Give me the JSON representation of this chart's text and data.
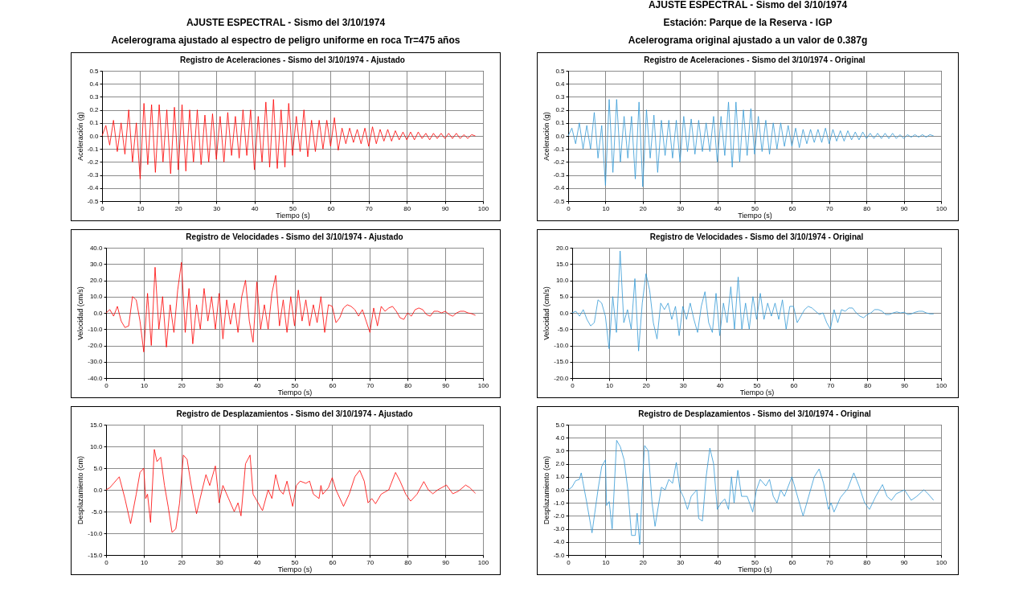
{
  "chart_data": [
    {
      "type": "line",
      "title": "Registro de Aceleraciones - Sismo del 3/10/1974 - Ajustado",
      "xlabel": "Tiempo (s)",
      "ylabel": "Aceleración (g)",
      "annotations": [
        "AJUSTE ESPECTRAL - Sismo del 3/10/1974",
        "Acelerograma ajustado al espectro de peligro uniforme en roca Tr=475 años"
      ],
      "xlim": [
        0,
        100
      ],
      "ylim": [
        -0.5,
        0.5
      ],
      "xticks": [
        0,
        10,
        20,
        30,
        40,
        50,
        60,
        70,
        80,
        90,
        100
      ],
      "yticks": [
        -0.5,
        -0.4,
        -0.3,
        -0.2,
        -0.1,
        {
          "value": 0,
          "label": "0.0"
        },
        0.1,
        0.2,
        0.3,
        0.4,
        0.5
      ],
      "grid": true,
      "series": [
        {
          "color": "#ff0000",
          "x": [
            0,
            1,
            2,
            3,
            4,
            5,
            6,
            7,
            8,
            9,
            10,
            11,
            12,
            13,
            14,
            15,
            16,
            17,
            18,
            19,
            20,
            21,
            22,
            23,
            24,
            25,
            26,
            27,
            28,
            29,
            30,
            31,
            32,
            33,
            34,
            35,
            36,
            37,
            38,
            39,
            40,
            41,
            42,
            43,
            44,
            45,
            46,
            47,
            48,
            49,
            50,
            51,
            52,
            53,
            54,
            55,
            56,
            57,
            58,
            59,
            60,
            61,
            62,
            63,
            64,
            65,
            66,
            67,
            68,
            69,
            70,
            71,
            72,
            73,
            74,
            75,
            76,
            77,
            78,
            79,
            80,
            81,
            82,
            83,
            84,
            85,
            86,
            87,
            88,
            89,
            90,
            91,
            92,
            93,
            94,
            95,
            96,
            97,
            98
          ],
          "values": [
            0.0,
            0.08,
            -0.07,
            0.12,
            -0.12,
            0.1,
            -0.14,
            0.2,
            -0.2,
            0.1,
            -0.33,
            0.25,
            -0.22,
            0.24,
            -0.28,
            0.24,
            -0.2,
            0.2,
            -0.29,
            0.22,
            -0.26,
            0.24,
            -0.27,
            0.2,
            -0.2,
            0.2,
            -0.22,
            0.16,
            -0.2,
            0.17,
            -0.18,
            0.15,
            -0.2,
            0.18,
            -0.15,
            0.15,
            -0.17,
            0.2,
            -0.15,
            0.2,
            -0.26,
            0.15,
            -0.2,
            0.26,
            -0.24,
            0.28,
            -0.25,
            0.2,
            -0.24,
            0.25,
            -0.15,
            0.15,
            -0.12,
            0.2,
            -0.16,
            0.12,
            -0.12,
            0.12,
            -0.1,
            0.12,
            -0.08,
            0.14,
            -0.11,
            0.06,
            -0.06,
            0.06,
            -0.05,
            0.05,
            -0.06,
            0.06,
            -0.08,
            0.07,
            -0.06,
            0.05,
            -0.04,
            0.05,
            -0.04,
            0.04,
            -0.03,
            0.03,
            -0.03,
            0.03,
            -0.03,
            0.03,
            -0.02,
            0.02,
            -0.03,
            0.02,
            -0.02,
            0.02,
            -0.02,
            0.02,
            -0.02,
            0.02,
            -0.02,
            0.01,
            -0.02,
            0.01,
            0.0
          ]
        }
      ]
    },
    {
      "type": "line",
      "title": "Registro de Aceleraciones - Sismo del 3/10/1974 - Original",
      "xlabel": "Tiempo (s)",
      "ylabel": "Aceleración (g)",
      "annotations": [
        "AJUSTE ESPECTRAL - Sismo del 3/10/1974",
        "Estación: Parque de la Reserva - IGP",
        "Acelerograma original ajustado a un valor de 0.387g"
      ],
      "xlim": [
        0,
        100
      ],
      "ylim": [
        -0.5,
        0.5
      ],
      "xticks": [
        0,
        10,
        20,
        30,
        40,
        50,
        60,
        70,
        80,
        90,
        100
      ],
      "yticks": [
        -0.5,
        -0.4,
        -0.3,
        -0.2,
        -0.1,
        {
          "value": 0,
          "label": "0.0"
        },
        0.1,
        0.2,
        0.3,
        0.4,
        0.5
      ],
      "grid": true,
      "series": [
        {
          "color": "#3399d6",
          "x": [
            0,
            1,
            2,
            3,
            4,
            5,
            6,
            7,
            8,
            9,
            10,
            11,
            12,
            13,
            14,
            15,
            16,
            17,
            18,
            19,
            20,
            21,
            22,
            23,
            24,
            25,
            26,
            27,
            28,
            29,
            30,
            31,
            32,
            33,
            34,
            35,
            36,
            37,
            38,
            39,
            40,
            41,
            42,
            43,
            44,
            45,
            46,
            47,
            48,
            49,
            50,
            51,
            52,
            53,
            54,
            55,
            56,
            57,
            58,
            59,
            60,
            61,
            62,
            63,
            64,
            65,
            66,
            67,
            68,
            69,
            70,
            71,
            72,
            73,
            74,
            75,
            76,
            77,
            78,
            79,
            80,
            81,
            82,
            83,
            84,
            85,
            86,
            87,
            88,
            89,
            90,
            91,
            92,
            93,
            94,
            95,
            96,
            97,
            98
          ],
          "values": [
            0.0,
            0.06,
            -0.06,
            0.1,
            -0.1,
            0.08,
            -0.1,
            0.18,
            -0.17,
            0.08,
            -0.38,
            0.28,
            -0.28,
            0.28,
            -0.2,
            0.15,
            -0.17,
            0.15,
            -0.33,
            0.26,
            -0.39,
            0.2,
            -0.17,
            0.16,
            -0.28,
            0.12,
            -0.15,
            0.12,
            -0.17,
            0.12,
            -0.2,
            0.15,
            -0.12,
            0.13,
            -0.14,
            0.12,
            -0.12,
            0.1,
            -0.12,
            0.15,
            -0.2,
            0.15,
            -0.15,
            0.26,
            -0.24,
            0.26,
            -0.2,
            0.2,
            -0.15,
            0.21,
            -0.14,
            0.15,
            -0.12,
            0.12,
            -0.14,
            0.1,
            -0.1,
            0.1,
            -0.08,
            0.08,
            -0.08,
            0.06,
            -0.09,
            0.05,
            -0.06,
            0.05,
            -0.05,
            0.05,
            -0.05,
            0.06,
            -0.06,
            0.05,
            -0.04,
            0.04,
            -0.04,
            0.04,
            -0.03,
            0.03,
            -0.03,
            0.03,
            -0.02,
            0.02,
            -0.02,
            0.02,
            -0.02,
            0.02,
            -0.02,
            0.02,
            -0.02,
            0.01,
            -0.02,
            0.01,
            -0.01,
            0.01,
            -0.01,
            0.01,
            -0.01,
            0.01,
            0.0
          ]
        }
      ]
    },
    {
      "type": "line",
      "title": "Registro de Velocidades - Sismo del 3/10/1974 - Ajustado",
      "xlabel": "Tiempo (s)",
      "ylabel": "Velocidad (cm/s)",
      "xlim": [
        0,
        100
      ],
      "ylim": [
        -40,
        40
      ],
      "xticks": [
        0,
        10,
        20,
        30,
        40,
        50,
        60,
        70,
        80,
        90,
        100
      ],
      "yticks": [
        {
          "value": -40,
          "label": "-40.0"
        },
        {
          "value": -30,
          "label": "-30.0"
        },
        {
          "value": -20,
          "label": "-20.0"
        },
        {
          "value": -10,
          "label": "-10.0"
        },
        {
          "value": 0,
          "label": "0.0"
        },
        {
          "value": 10,
          "label": "10.0"
        },
        {
          "value": 20,
          "label": "20.0"
        },
        {
          "value": 30,
          "label": "30.0"
        },
        {
          "value": 40,
          "label": "40.0"
        }
      ],
      "grid": true,
      "series": [
        {
          "color": "#ff0000",
          "x": [
            0,
            1,
            2,
            3,
            4,
            5,
            6,
            7,
            8,
            9,
            10,
            11,
            12,
            13,
            14,
            15,
            16,
            17,
            18,
            19,
            20,
            21,
            22,
            23,
            24,
            25,
            26,
            27,
            28,
            29,
            30,
            31,
            32,
            33,
            34,
            35,
            36,
            37,
            38,
            39,
            40,
            41,
            42,
            43,
            44,
            45,
            46,
            47,
            48,
            49,
            50,
            51,
            52,
            53,
            54,
            55,
            56,
            57,
            58,
            59,
            60,
            61,
            62,
            63,
            64,
            65,
            66,
            67,
            68,
            69,
            70,
            71,
            72,
            73,
            74,
            75,
            76,
            77,
            78,
            79,
            80,
            81,
            82,
            83,
            84,
            85,
            86,
            87,
            88,
            89,
            90,
            91,
            92,
            93,
            94,
            95,
            96,
            97,
            98
          ],
          "values": [
            0,
            2,
            -2,
            4,
            -5,
            -9,
            -8,
            10,
            8,
            -5,
            -24,
            12,
            -20,
            28,
            -10,
            10,
            -21,
            5,
            -12,
            14,
            31,
            -12,
            15,
            -19,
            5,
            -10,
            15,
            -5,
            10,
            -10,
            12,
            -16,
            8,
            -7,
            6,
            -12,
            10,
            20,
            -5,
            -18,
            19,
            -10,
            5,
            -10,
            12,
            23,
            -8,
            8,
            -12,
            10,
            -8,
            14,
            -5,
            8,
            -8,
            5,
            -6,
            10,
            -12,
            5,
            4,
            -6,
            -3,
            3,
            5,
            4,
            2,
            -2,
            2,
            -5,
            -12,
            3,
            -8,
            4,
            1,
            3,
            4,
            1,
            -3,
            -4,
            0,
            -2,
            2,
            3,
            2,
            -1,
            -2,
            1,
            1,
            0,
            1,
            -1,
            -2,
            0,
            1,
            1,
            0,
            -0.5,
            -1.5
          ]
        }
      ]
    },
    {
      "type": "line",
      "title": "Registro de Velocidades - Sismo del 3/10/1974 - Original",
      "xlabel": "Tiempo (s)",
      "ylabel": "Velocidad (cm/s)",
      "xlim": [
        0,
        100
      ],
      "ylim": [
        -20,
        20
      ],
      "xticks": [
        0,
        10,
        20,
        30,
        40,
        50,
        60,
        70,
        80,
        90,
        100
      ],
      "yticks": [
        {
          "value": -20,
          "label": "-20.0"
        },
        {
          "value": -15,
          "label": "-15.0"
        },
        {
          "value": -10,
          "label": "-10.0"
        },
        {
          "value": -5,
          "label": "-5.0"
        },
        {
          "value": 0,
          "label": "0.0"
        },
        {
          "value": 5,
          "label": "5.0"
        },
        {
          "value": 10,
          "label": "10.0"
        },
        {
          "value": 15,
          "label": "15.0"
        },
        {
          "value": 20,
          "label": "20.0"
        }
      ],
      "grid": true,
      "series": [
        {
          "color": "#3399d6",
          "x": [
            0,
            1,
            2,
            3,
            4,
            5,
            6,
            7,
            8,
            9,
            10,
            11,
            12,
            13,
            14,
            15,
            16,
            17,
            18,
            19,
            20,
            21,
            22,
            23,
            24,
            25,
            26,
            27,
            28,
            29,
            30,
            31,
            32,
            33,
            34,
            35,
            36,
            37,
            38,
            39,
            40,
            41,
            42,
            43,
            44,
            45,
            46,
            47,
            48,
            49,
            50,
            51,
            52,
            53,
            54,
            55,
            56,
            57,
            58,
            59,
            60,
            61,
            62,
            63,
            64,
            65,
            66,
            67,
            68,
            69,
            70,
            71,
            72,
            73,
            74,
            75,
            76,
            77,
            78,
            79,
            80,
            81,
            82,
            83,
            84,
            85,
            86,
            87,
            88,
            89,
            90,
            91,
            92,
            93,
            94,
            95,
            96,
            97,
            98
          ],
          "values": [
            0,
            0.5,
            -1,
            1,
            -2,
            -4,
            -3,
            4,
            3,
            -1,
            -11,
            5,
            -6,
            19,
            -3,
            1,
            -5,
            10.5,
            -11.7,
            3,
            12,
            7,
            -3,
            -8,
            3,
            1,
            3,
            -2,
            2,
            -7,
            2,
            -2,
            3,
            -2,
            -6,
            2,
            6.5,
            -3,
            -6,
            6,
            -7,
            3,
            -3,
            8,
            -5,
            11,
            -5,
            3,
            -5,
            5,
            -2,
            6,
            -2,
            3,
            -1,
            3,
            -2,
            4,
            -5,
            2,
            2,
            -3,
            -1,
            1,
            2,
            1.5,
            0.5,
            -0.5,
            0,
            -3,
            -5,
            1,
            -3,
            1,
            0.5,
            1.5,
            1.5,
            0,
            -1,
            -1.5,
            -0.5,
            0,
            1,
            1,
            0.5,
            -0.5,
            -0.5,
            0,
            0.3,
            0,
            0.2,
            -0.5,
            -0.3,
            0.2,
            0.5,
            0.5,
            0,
            -0.3,
            -0.3
          ]
        }
      ]
    },
    {
      "type": "line",
      "title": "Registro de Desplazamientos - Sismo del 3/10/1974 - Ajustado",
      "xlabel": "Tiempo (s)",
      "ylabel": "Desplazamiento (cm)",
      "xlim": [
        0,
        100
      ],
      "ylim": [
        -15,
        15
      ],
      "xticks": [
        0,
        10,
        20,
        30,
        40,
        50,
        60,
        70,
        80,
        90,
        100
      ],
      "yticks": [
        {
          "value": -15,
          "label": "-15.0"
        },
        {
          "value": -10,
          "label": "-10.0"
        },
        {
          "value": -5,
          "label": "-5.0"
        },
        {
          "value": 0,
          "label": "0.0"
        },
        {
          "value": 5,
          "label": "5.0"
        },
        {
          "value": 10,
          "label": "10.0"
        },
        {
          "value": 15,
          "label": "15.0"
        }
      ],
      "grid": true,
      "series": [
        {
          "color": "#ff0000",
          "x": [
            0,
            1,
            2,
            3.5,
            5,
            6.5,
            8,
            9,
            10,
            10.5,
            11,
            11.8,
            12.8,
            13.5,
            14.5,
            15.5,
            16.5,
            17.5,
            18.5,
            19.5,
            20.5,
            21.5,
            22.5,
            24,
            25.5,
            26.5,
            27.5,
            29,
            30,
            31,
            32.5,
            34,
            35,
            35.8,
            37,
            38.2,
            39,
            40,
            41.5,
            43,
            44,
            45,
            46,
            47,
            48,
            49.5,
            50.5,
            51.5,
            53,
            54,
            55,
            56.5,
            57,
            57.5,
            59,
            60,
            61,
            63,
            64.5,
            66,
            67.3,
            68.5,
            69.5,
            70.5,
            71.5,
            73,
            75,
            76.8,
            78,
            79.5,
            80.8,
            82.5,
            84.3,
            85.5,
            86.7,
            88,
            90.3,
            92,
            93.5,
            95.4,
            96.5,
            98
          ],
          "values": [
            0,
            0.5,
            1.5,
            3,
            -2,
            -7.8,
            -1,
            4,
            5,
            -2,
            -1,
            -7.5,
            9.3,
            6.5,
            7.5,
            1,
            -4,
            -9.8,
            -9,
            -3,
            8,
            7,
            1.5,
            -5.5,
            0,
            3.5,
            1,
            5.5,
            -3,
            1,
            -2,
            -5,
            -3,
            -6,
            6,
            8,
            -1,
            -2.5,
            -4.8,
            0,
            -2,
            3.5,
            0,
            -1,
            2,
            -3.8,
            1,
            2,
            1.5,
            2,
            -1,
            -2,
            1,
            -1,
            0.5,
            2.8,
            0,
            -3.8,
            -1,
            3,
            4.5,
            2,
            -3,
            -2,
            -3.2,
            -1,
            0,
            4,
            2,
            -1,
            -2.6,
            -1,
            1.9,
            0,
            -0.9,
            0,
            1.1,
            -0.9,
            -0.3,
            1.1,
            0.5,
            -0.8
          ]
        }
      ]
    },
    {
      "type": "line",
      "title": "Registro de Desplazamientos - Sismo del 3/10/1974 - Original",
      "xlabel": "Tiempo (s)",
      "ylabel": "Desplazamiento (cm)",
      "xlim": [
        0,
        100
      ],
      "ylim": [
        -5,
        5
      ],
      "xticks": [
        0,
        10,
        20,
        30,
        40,
        50,
        60,
        70,
        80,
        90,
        100
      ],
      "yticks": [
        {
          "value": -5,
          "label": "-5.0"
        },
        {
          "value": -4,
          "label": "-4.0"
        },
        {
          "value": -3,
          "label": "-3.0"
        },
        {
          "value": -2,
          "label": "-2.0"
        },
        {
          "value": -1,
          "label": "-1.0"
        },
        {
          "value": 0,
          "label": "0.0"
        },
        {
          "value": 1,
          "label": "1.0"
        },
        {
          "value": 2,
          "label": "2.0"
        },
        {
          "value": 3,
          "label": "3.0"
        },
        {
          "value": 4,
          "label": "4.0"
        },
        {
          "value": 5,
          "label": "5.0"
        }
      ],
      "grid": true,
      "series": [
        {
          "color": "#3399d6",
          "x": [
            0,
            1,
            2,
            3,
            3.5,
            5,
            6.4,
            8,
            9,
            10,
            10.3,
            11,
            11.8,
            13,
            14,
            15,
            16,
            17,
            18,
            18.5,
            19.2,
            20,
            20.5,
            21.5,
            22.5,
            23.3,
            25,
            26,
            27,
            28,
            29,
            30,
            31,
            32,
            33,
            34.5,
            35,
            36,
            37,
            38,
            39,
            40,
            41,
            42,
            43,
            43.8,
            44.5,
            45.5,
            46.5,
            48,
            49.5,
            50.5,
            51.5,
            53,
            54,
            55,
            56,
            57,
            58,
            60,
            61,
            63,
            64.5,
            66,
            67.3,
            68.5,
            69.8,
            70.5,
            71.3,
            73,
            75,
            76.6,
            78,
            79.5,
            80.8,
            82.5,
            84.3,
            85.5,
            86.7,
            88,
            90.2,
            92,
            93.5,
            95.4,
            96.5,
            98
          ],
          "values": [
            0,
            0.2,
            0.7,
            0.8,
            1.3,
            -1,
            -3.3,
            0,
            1.8,
            2.3,
            -1.2,
            -0.9,
            -3,
            3.8,
            3.3,
            2.3,
            0,
            -3.5,
            -3.5,
            -1.8,
            -4.2,
            1,
            3.4,
            3,
            -1,
            -2.8,
            0.2,
            0,
            0.8,
            0.5,
            2.1,
            0,
            -0.6,
            -1.5,
            -0.5,
            0,
            -2.2,
            -2.4,
            1,
            3.2,
            2,
            -1.5,
            -1,
            -0.7,
            -1.5,
            1,
            -1,
            1.5,
            -0.5,
            -0.5,
            -1.7,
            0,
            0.8,
            0.3,
            0.8,
            -0.5,
            -1,
            0,
            -0.5,
            1,
            0,
            -2,
            -0.5,
            1,
            1.6,
            0.5,
            -1.5,
            -1,
            -1.7,
            -0.6,
            0.1,
            1.3,
            0.3,
            -1,
            -1.5,
            -0.5,
            0.4,
            -0.5,
            -0.8,
            -0.3,
            0,
            -0.8,
            -0.5,
            0,
            -0.3,
            -0.8
          ]
        }
      ]
    }
  ]
}
